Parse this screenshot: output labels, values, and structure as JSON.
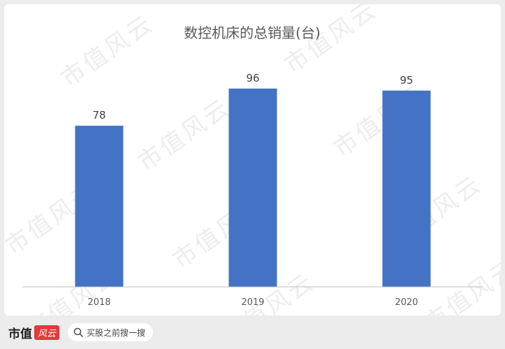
{
  "chart_data": {
    "type": "bar",
    "title": "数控机床的总销量(台)",
    "categories": [
      "2018",
      "2019",
      "2020"
    ],
    "values": [
      78,
      96,
      95
    ],
    "ylim": [
      0,
      100
    ],
    "grid": false,
    "bar_color": "#4472c4"
  },
  "watermark": "市值风云",
  "footer": {
    "brand": "市值",
    "logo": "风云",
    "search_label": "买股之前搜一搜"
  },
  "colors": {
    "accent": "#e03a3a",
    "axis": "#bfbfbf",
    "text": "#404040"
  }
}
